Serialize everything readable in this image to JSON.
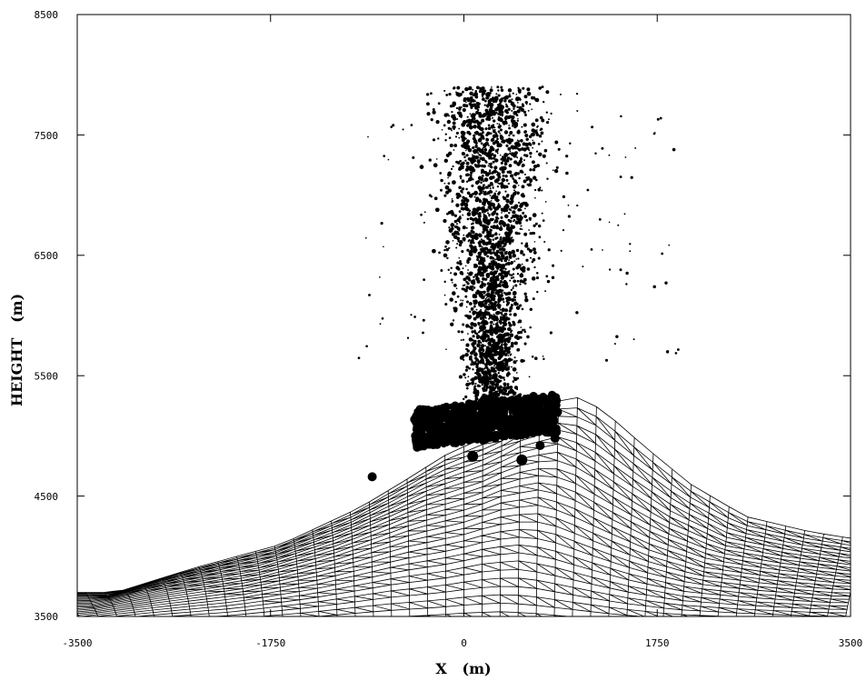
{
  "chart_data": {
    "type": "scatter",
    "title": "",
    "xlabel": "X   (m)",
    "ylabel": "HEIGHT   (m)",
    "xlim": [
      -3500,
      3500
    ],
    "ylim": [
      3500,
      8500
    ],
    "x_ticks": [
      -3500,
      -1750,
      0,
      1750,
      3500
    ],
    "y_ticks": [
      3500,
      4500,
      5500,
      6500,
      7500,
      8500
    ],
    "x_tick_labels": [
      "-3500",
      "-1750",
      "0",
      "1750",
      "3500"
    ],
    "y_tick_labels": [
      "3500",
      "4500",
      "5500",
      "6500",
      "7500",
      "8500"
    ],
    "grid": false,
    "legend": "none",
    "colors": {
      "ink": "#000000",
      "background": "#ffffff"
    },
    "surface": {
      "type": "wireframe",
      "summit": {
        "x": 650,
        "y": 5330
      },
      "profile_x": [
        -3500,
        -2800,
        -2000,
        -1300,
        -900,
        -500,
        0,
        300,
        650,
        900,
        1300,
        1700,
        2200,
        2800,
        3500
      ],
      "profile_y": [
        3700,
        3900,
        4100,
        4400,
        4620,
        4850,
        5050,
        5230,
        5330,
        5220,
        4900,
        4600,
        4330,
        4200,
        4100
      ]
    },
    "series": [
      {
        "description_key": "plume-particles",
        "values_region": {
          "x_range": [
            -950,
            1950
          ],
          "y_range": [
            5100,
            7900
          ]
        }
      },
      {
        "description_key": "large-particles",
        "values": [
          {
            "x": 80,
            "y": 4830
          },
          {
            "x": 525,
            "y": 4800
          },
          {
            "x": -830,
            "y": 4660
          },
          {
            "x": 825,
            "y": 4980
          },
          {
            "x": 690,
            "y": 4920
          }
        ]
      }
    ]
  }
}
